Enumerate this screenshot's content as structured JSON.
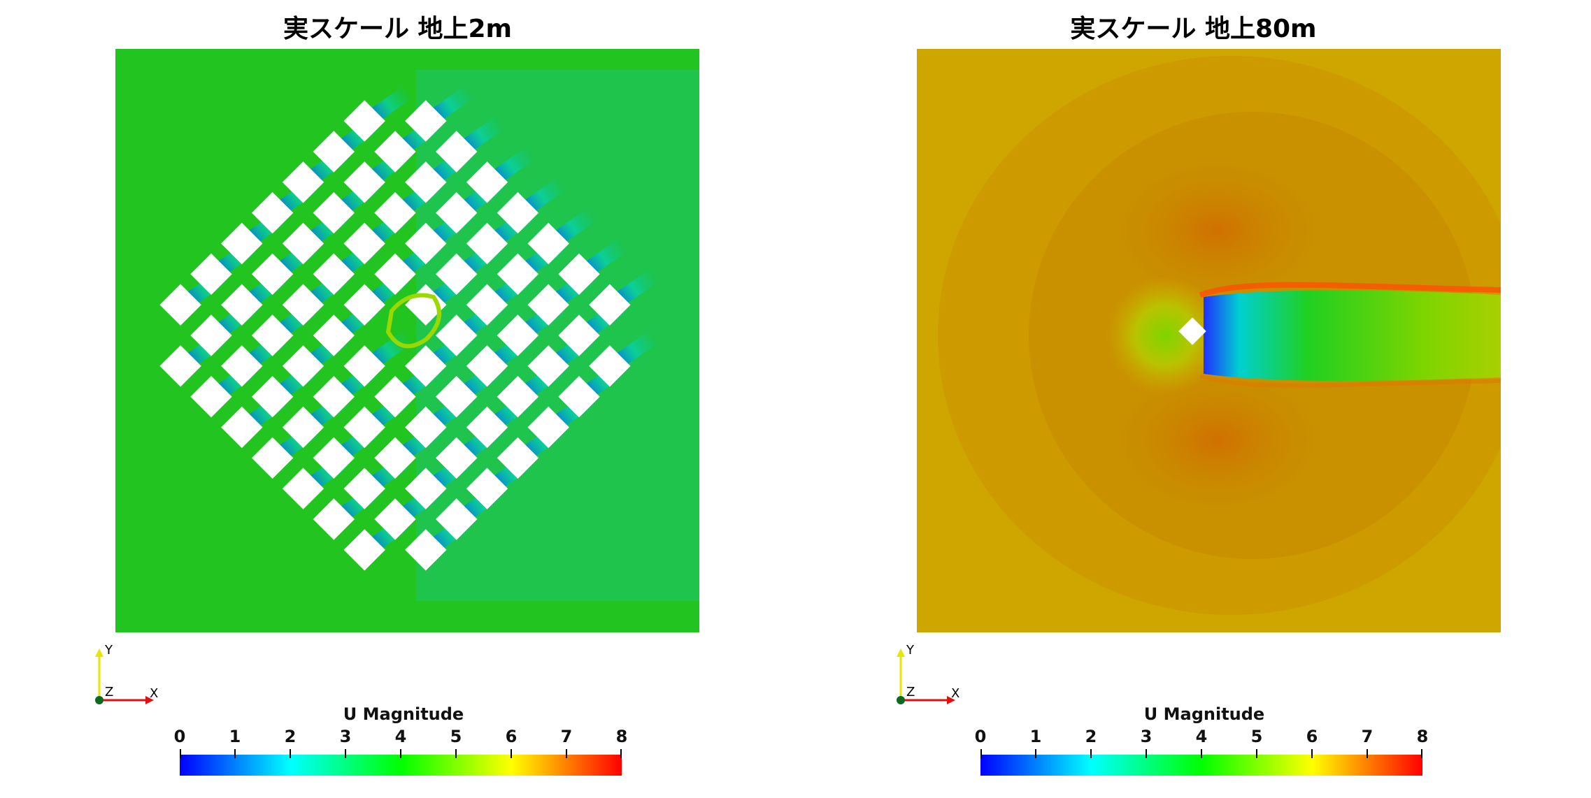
{
  "panels": [
    {
      "title": "実スケール 地上2m",
      "colorbar": {
        "title": "U Magnitude",
        "ticks": [
          "0",
          "1",
          "2",
          "3",
          "4",
          "5",
          "6",
          "7",
          "8"
        ]
      },
      "axes": {
        "x": "X",
        "y": "Y",
        "z": "Z"
      }
    },
    {
      "title": "実スケール 地上80m",
      "colorbar": {
        "title": "U Magnitude",
        "ticks": [
          "0",
          "1",
          "2",
          "3",
          "4",
          "5",
          "6",
          "7",
          "8"
        ]
      },
      "axes": {
        "x": "X",
        "y": "Y",
        "z": "Z"
      }
    }
  ],
  "colors": {
    "left_background": "#22c41f",
    "right_background": "#d1a800",
    "colormap": [
      "#0000ff",
      "#00ffff",
      "#00ff00",
      "#ffff00",
      "#ff0000"
    ]
  },
  "colorbar_range": [
    0,
    8
  ]
}
